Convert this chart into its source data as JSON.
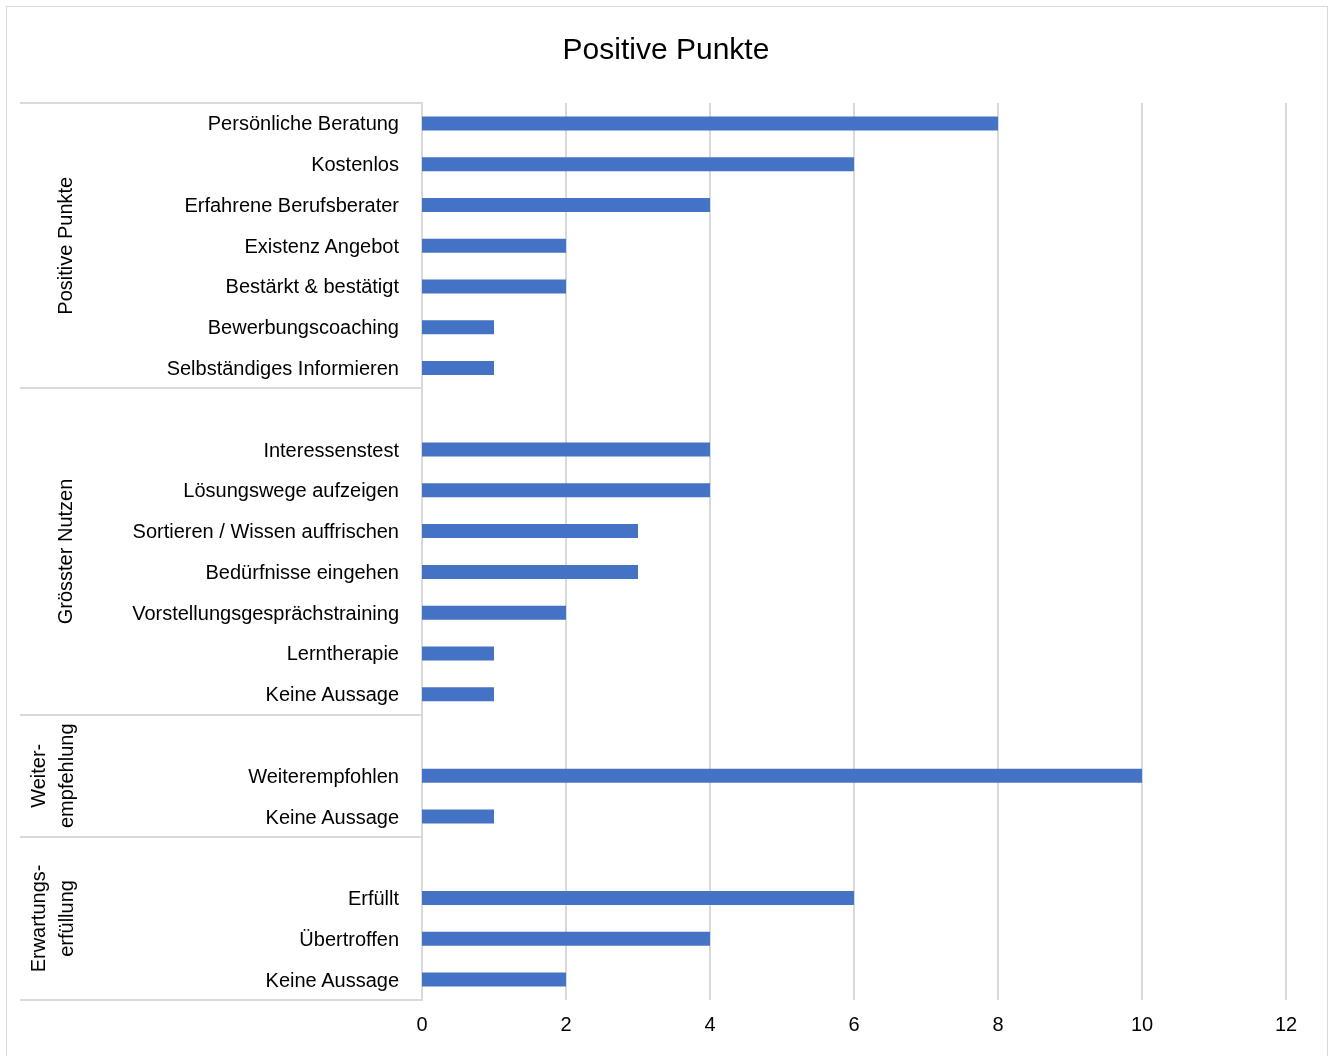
{
  "chart_data": {
    "type": "bar",
    "orientation": "horizontal",
    "title": "Positive Punkte",
    "categories": [
      "Persönliche Beratung",
      "Kostenlos",
      "Erfahrene Berufsberater",
      "Existenz Angebot",
      "Bestärkt & bestätigt",
      "Bewerbungscoaching",
      "Selbständiges Informieren",
      null,
      "Interessenstest",
      "Lösungswege aufzeigen",
      "Sortieren / Wissen auffrischen",
      "Bedürfnisse eingehen",
      "Vorstellungsgesprächstraining",
      "Lerntherapie",
      "Keine Aussage",
      null,
      "Weiterempfohlen",
      "Keine Aussage",
      null,
      "Erfüllt",
      "Übertroffen",
      "Keine Aussage"
    ],
    "values": [
      8,
      6,
      4,
      2,
      2,
      1,
      1,
      null,
      4,
      4,
      3,
      3,
      2,
      1,
      1,
      null,
      10,
      1,
      null,
      6,
      4,
      2
    ],
    "color": "#4472c4",
    "xlim": [
      0,
      12
    ],
    "xticks": [
      0,
      2,
      4,
      6,
      8,
      10,
      12
    ],
    "grid": "x",
    "annotations": [
      "Positive Punkte",
      "Grösster Nutzen",
      "Weiter- empfehlung",
      "Erwartungs- erfüllung"
    ]
  }
}
